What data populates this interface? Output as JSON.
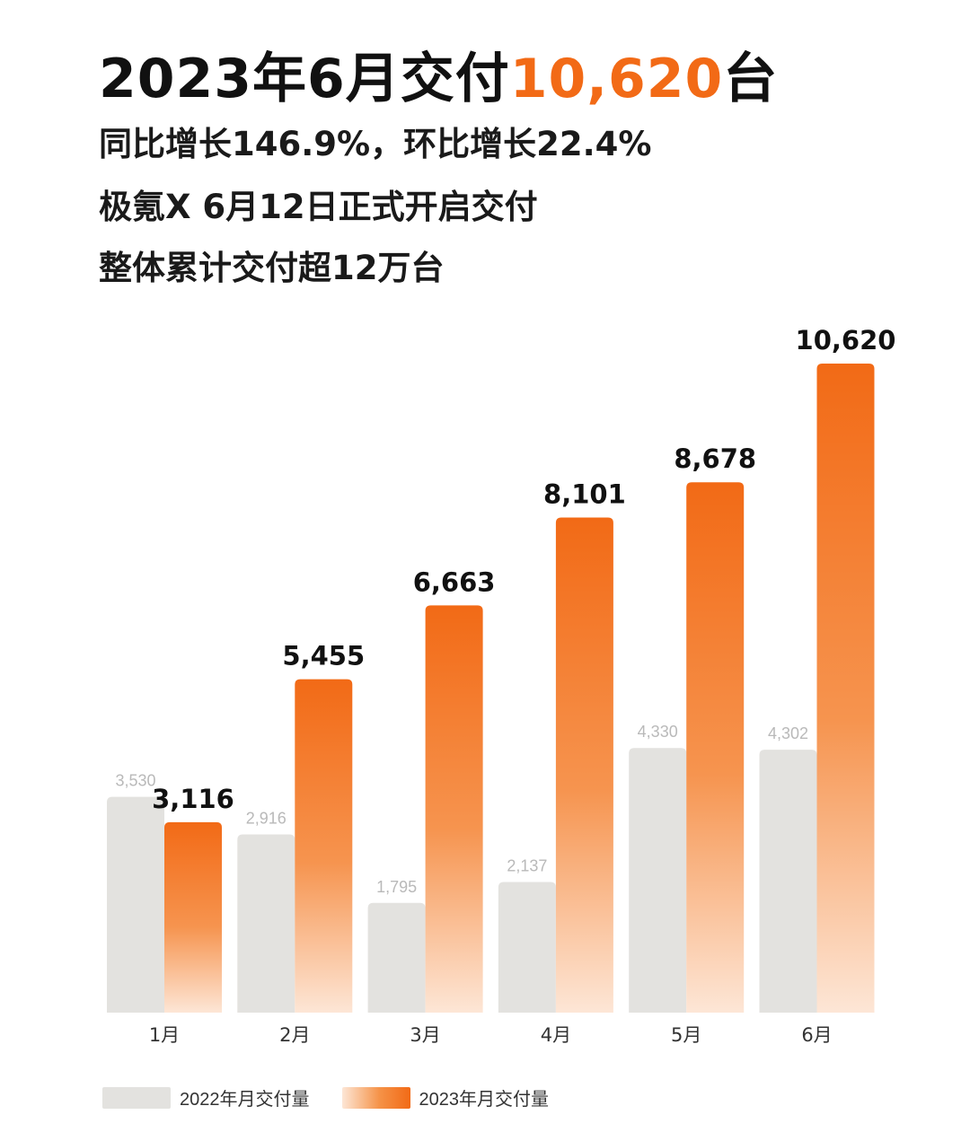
{
  "header": {
    "title_prefix": "2023年6月交付",
    "title_highlight": "10,620",
    "title_suffix": "台",
    "line1": "同比增长146.9%，环比增长22.4%",
    "line2": "极氪X 6月12日正式开启交付",
    "line3": "整体累计交付超12万台"
  },
  "colors": {
    "accent": "#f26a16",
    "bar_2022": "#e3e2df",
    "bar_2023_top": "#f26a16",
    "bar_2023_bottom": "#fde6d6",
    "label_2022": "#b9b9b9"
  },
  "chart_data": {
    "type": "bar",
    "categories": [
      "1月",
      "2月",
      "3月",
      "4月",
      "5月",
      "6月"
    ],
    "series": [
      {
        "name": "2022年月交付量",
        "values": [
          3530,
          2916,
          1795,
          2137,
          4330,
          4302
        ],
        "labels": [
          "3,530",
          "2,916",
          "1,795",
          "2,137",
          "4,330",
          "4,302"
        ]
      },
      {
        "name": "2023年月交付量",
        "values": [
          3116,
          5455,
          6663,
          8101,
          8678,
          10620
        ],
        "labels": [
          "3,116",
          "5,455",
          "6,663",
          "8,101",
          "8,678",
          "10,620"
        ]
      }
    ],
    "ylim": [
      0,
      10620
    ],
    "grid": false,
    "legend": "bottom-left"
  }
}
